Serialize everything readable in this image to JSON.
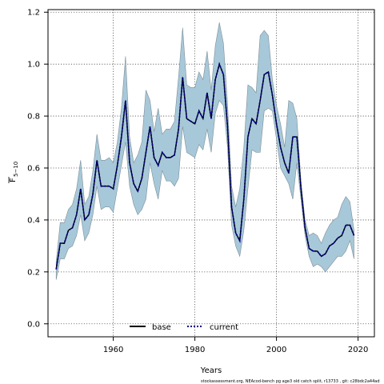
{
  "chart_data": {
    "type": "line",
    "xlabel": "Years",
    "ylabel_main": "F",
    "ylabel_sub": "5−10",
    "xlim": [
      1944,
      2024
    ],
    "ylim": [
      -0.05,
      1.21
    ],
    "xticks": [
      1960,
      1980,
      2000,
      2020
    ],
    "yticks": [
      0.0,
      0.2,
      0.4,
      0.6,
      0.8,
      1.0,
      1.2
    ],
    "ytick_labels": [
      "0.0",
      "0.2",
      "0.4",
      "0.6",
      "0.8",
      "1.0",
      "1.2"
    ],
    "grid": true,
    "legend_position": "bottom-center",
    "x": [
      1946,
      1947,
      1948,
      1949,
      1950,
      1951,
      1952,
      1953,
      1954,
      1955,
      1956,
      1957,
      1958,
      1959,
      1960,
      1961,
      1962,
      1963,
      1964,
      1965,
      1966,
      1967,
      1968,
      1969,
      1970,
      1971,
      1972,
      1973,
      1974,
      1975,
      1976,
      1977,
      1978,
      1979,
      1980,
      1981,
      1982,
      1983,
      1984,
      1985,
      1986,
      1987,
      1988,
      1989,
      1990,
      1991,
      1992,
      1993,
      1994,
      1995,
      1996,
      1997,
      1998,
      1999,
      2000,
      2001,
      2002,
      2003,
      2004,
      2005,
      2006,
      2007,
      2008,
      2009,
      2010,
      2011,
      2012,
      2013,
      2014,
      2015,
      2016,
      2017,
      2018,
      2019
    ],
    "band_upper": [
      0.24,
      0.39,
      0.39,
      0.44,
      0.46,
      0.52,
      0.63,
      0.46,
      0.49,
      0.59,
      0.73,
      0.63,
      0.63,
      0.64,
      0.62,
      0.7,
      0.83,
      1.03,
      0.72,
      0.62,
      0.65,
      0.7,
      0.9,
      0.86,
      0.74,
      0.83,
      0.73,
      0.75,
      0.75,
      0.78,
      0.95,
      1.14,
      0.92,
      0.91,
      0.91,
      0.97,
      0.94,
      1.05,
      0.9,
      1.07,
      1.16,
      1.08,
      0.85,
      0.53,
      0.45,
      0.52,
      0.68,
      0.92,
      0.91,
      0.89,
      1.11,
      1.13,
      1.11,
      0.94,
      0.84,
      0.77,
      0.68,
      0.86,
      0.85,
      0.79,
      0.55,
      0.4,
      0.34,
      0.35,
      0.34,
      0.31,
      0.35,
      0.38,
      0.4,
      0.41,
      0.46,
      0.49,
      0.47,
      0.36
    ],
    "band_lower": [
      0.17,
      0.25,
      0.25,
      0.29,
      0.3,
      0.34,
      0.42,
      0.32,
      0.35,
      0.42,
      0.53,
      0.44,
      0.45,
      0.45,
      0.43,
      0.52,
      0.61,
      0.7,
      0.53,
      0.46,
      0.42,
      0.44,
      0.48,
      0.62,
      0.54,
      0.48,
      0.59,
      0.55,
      0.55,
      0.53,
      0.56,
      0.76,
      0.66,
      0.65,
      0.64,
      0.69,
      0.67,
      0.75,
      0.66,
      0.81,
      0.86,
      0.84,
      0.68,
      0.38,
      0.3,
      0.26,
      0.36,
      0.52,
      0.67,
      0.66,
      0.66,
      0.82,
      0.83,
      0.82,
      0.71,
      0.6,
      0.57,
      0.54,
      0.48,
      0.62,
      0.48,
      0.34,
      0.26,
      0.22,
      0.23,
      0.22,
      0.2,
      0.22,
      0.24,
      0.26,
      0.26,
      0.28,
      0.32,
      0.25
    ],
    "series": [
      {
        "name": "base",
        "color": "#000000",
        "dash": "solid",
        "values": [
          0.21,
          0.31,
          0.31,
          0.36,
          0.37,
          0.42,
          0.52,
          0.4,
          0.42,
          0.5,
          0.63,
          0.53,
          0.53,
          0.53,
          0.52,
          0.61,
          0.72,
          0.86,
          0.62,
          0.54,
          0.51,
          0.56,
          0.66,
          0.76,
          0.64,
          0.61,
          0.66,
          0.64,
          0.64,
          0.65,
          0.75,
          0.95,
          0.79,
          0.78,
          0.77,
          0.82,
          0.79,
          0.89,
          0.79,
          0.94,
          1.0,
          0.96,
          0.76,
          0.45,
          0.35,
          0.32,
          0.48,
          0.72,
          0.79,
          0.77,
          0.86,
          0.96,
          0.97,
          0.88,
          0.77,
          0.68,
          0.62,
          0.58,
          0.72,
          0.72,
          0.52,
          0.37,
          0.29,
          0.28,
          0.28,
          0.26,
          0.27,
          0.3,
          0.31,
          0.33,
          0.34,
          0.38,
          0.38,
          0.34
        ]
      },
      {
        "name": "current",
        "color": "#00008B",
        "dash": "dotted",
        "values": [
          0.21,
          0.31,
          0.31,
          0.36,
          0.37,
          0.42,
          0.52,
          0.4,
          0.42,
          0.5,
          0.63,
          0.53,
          0.53,
          0.53,
          0.52,
          0.61,
          0.72,
          0.86,
          0.62,
          0.54,
          0.51,
          0.56,
          0.66,
          0.76,
          0.64,
          0.61,
          0.66,
          0.64,
          0.64,
          0.65,
          0.75,
          0.95,
          0.79,
          0.78,
          0.77,
          0.82,
          0.79,
          0.89,
          0.79,
          0.94,
          1.0,
          0.96,
          0.76,
          0.45,
          0.35,
          0.32,
          0.48,
          0.72,
          0.79,
          0.77,
          0.86,
          0.96,
          0.97,
          0.88,
          0.77,
          0.68,
          0.62,
          0.58,
          0.72,
          0.72,
          0.52,
          0.37,
          0.29,
          0.28,
          0.28,
          0.26,
          0.27,
          0.3,
          0.31,
          0.33,
          0.34,
          0.38,
          0.38,
          0.34
        ]
      }
    ],
    "band_color": "#A7C8D8",
    "footer": "stockassessment.org,  NEAcod-bench  pg  age3  old  catch  split,  r13733 ,  git:  c28bdc2a44ad"
  }
}
